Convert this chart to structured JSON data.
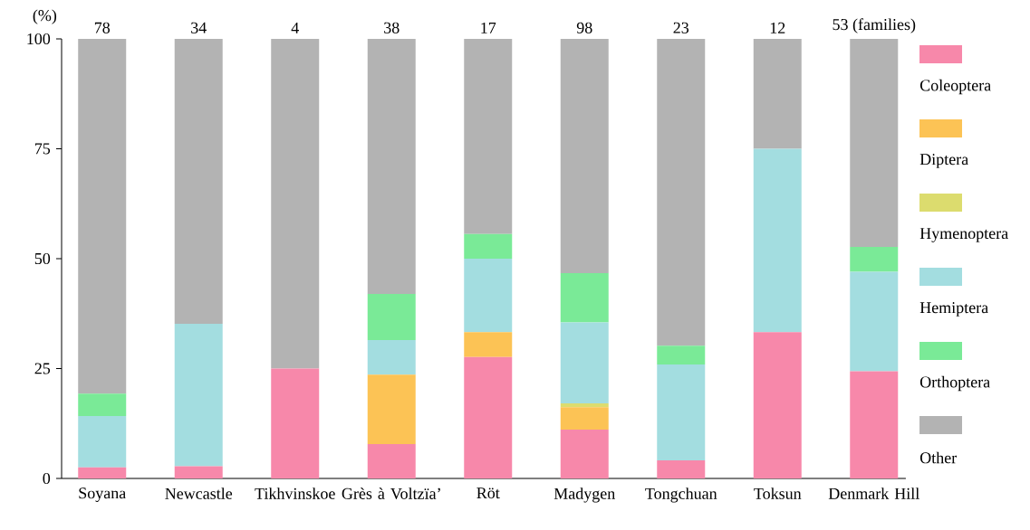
{
  "chart_data": {
    "type": "bar",
    "stacked": true,
    "ylabel": "(%)",
    "categories": [
      "Soyana",
      "Newcastle",
      "Tikhvinskoe",
      "Grès à Voltzïa’",
      "Röt",
      "Madygen",
      "Tongchuan",
      "Toksun",
      "Denmark Hill"
    ],
    "series": [
      {
        "name": "Coleoptera",
        "color": "#f788aa",
        "values": [
          2.5,
          2.8,
          25,
          7.8,
          27.6,
          11.1,
          4.1,
          33.3,
          24.4
        ]
      },
      {
        "name": "Diptera",
        "color": "#fcc355",
        "values": [
          0,
          0,
          0,
          15.8,
          5.7,
          5.1,
          0,
          0,
          0
        ]
      },
      {
        "name": "Hymenoptera",
        "color": "#dcdc6e",
        "values": [
          0,
          0,
          0,
          0,
          0,
          0.9,
          0,
          0,
          0
        ]
      },
      {
        "name": "Hemiptera",
        "color": "#a3dde0",
        "values": [
          11.7,
          32.4,
          0,
          7.9,
          16.7,
          18.4,
          21.8,
          41.7,
          22.6
        ]
      },
      {
        "name": "Orthoptera",
        "color": "#7aea97",
        "values": [
          5.1,
          0,
          0,
          10.5,
          5.6,
          11.2,
          4.3,
          0,
          5.7
        ]
      },
      {
        "name": "Other",
        "color": "#b3b3b3",
        "values": [
          80.7,
          64.8,
          75,
          58,
          44.4,
          53.3,
          69.8,
          25,
          47.3
        ]
      }
    ],
    "ylim": [
      0,
      100
    ],
    "yticks": [
      0,
      25,
      50,
      75,
      100
    ],
    "grid": false,
    "legend": "right",
    "annotations": [
      "78",
      "34",
      "4",
      "38",
      "17",
      "98",
      "23",
      "12",
      "53 (families)"
    ]
  }
}
